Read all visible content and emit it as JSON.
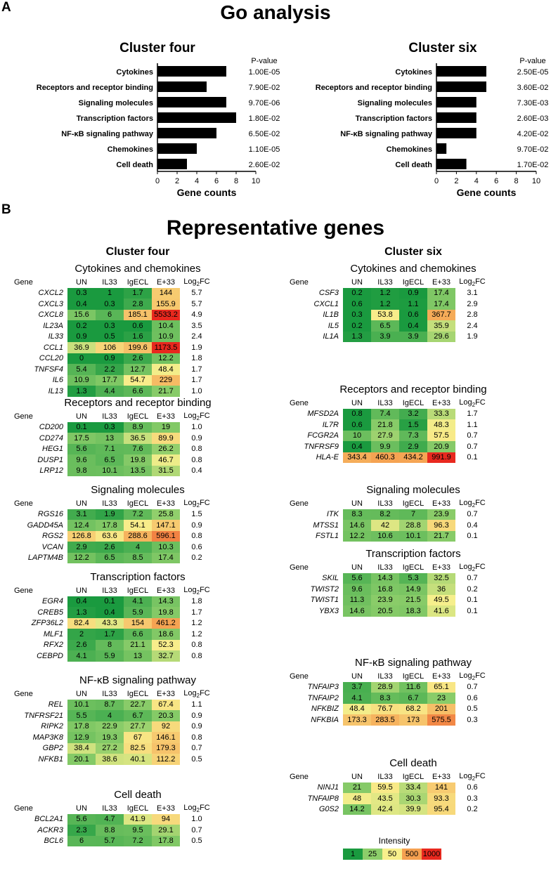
{
  "panel_labels": {
    "a": "A",
    "b": "B"
  },
  "titles": {
    "go": "Go analysis",
    "rep": "Representative genes"
  },
  "chart_data": [
    {
      "type": "bar",
      "orientation": "horizontal",
      "title": "Cluster four",
      "categories": [
        "Cytokines",
        "Receptors and receptor binding",
        "Signaling molecules",
        "Transcription factors",
        "NF-κB signaling pathway",
        "Chemokines",
        "Cell death"
      ],
      "values": [
        7,
        5,
        7,
        8,
        6,
        4,
        3
      ],
      "pvalues": [
        "1.00E-05",
        "7.90E-02",
        "9.70E-06",
        "1.80E-02",
        "6.50E-02",
        "1.10E-05",
        "2.60E-02"
      ],
      "pvalue_header": "P-value",
      "xlabel": "Gene counts",
      "xlim": [
        0,
        10
      ],
      "xticks": [
        "0",
        "2",
        "4",
        "6",
        "8",
        "10"
      ]
    },
    {
      "type": "bar",
      "orientation": "horizontal",
      "title": "Cluster six",
      "categories": [
        "Cytokines",
        "Receptors and receptor binding",
        "Signaling molecules",
        "Transcription factors",
        "NF-κB signaling pathway",
        "Chemokines",
        "Cell death"
      ],
      "values": [
        5,
        5,
        4,
        4,
        4,
        1,
        3
      ],
      "pvalues": [
        "2.50E-05",
        "3.60E-02",
        "7.30E-03",
        "2.60E-03",
        "4.20E-02",
        "9.70E-02",
        "1.70E-02"
      ],
      "pvalue_header": "P-value",
      "xlabel": "Gene counts",
      "xlim": [
        0,
        10
      ],
      "xticks": [
        "0",
        "2",
        "4",
        "6",
        "8",
        "10"
      ]
    },
    {
      "type": "heatmap",
      "title": "Cluster four",
      "columns": [
        "Gene",
        "UN",
        "IL33",
        "IgECL",
        "E+33",
        "Log2FC"
      ],
      "sections": [
        {
          "title": "Cytokines and chemokines",
          "rows": [
            {
              "gene": "CXCL2",
              "vals": [
                "0.3",
                "1",
                "1.7",
                "144"
              ],
              "fc": "5.7"
            },
            {
              "gene": "CXCL3",
              "vals": [
                "0.4",
                "0.3",
                "2.8",
                "155.9"
              ],
              "fc": "5.7"
            },
            {
              "gene": "CXCL8",
              "vals": [
                "15.6",
                "6",
                "185.1",
                "5533.2"
              ],
              "fc": "4.9"
            },
            {
              "gene": "IL23A",
              "vals": [
                "0.2",
                "0.3",
                "0.6",
                "10.4"
              ],
              "fc": "3.5"
            },
            {
              "gene": "IL33",
              "vals": [
                "0.9",
                "0.5",
                "1.6",
                "10.9"
              ],
              "fc": "2.4"
            },
            {
              "gene": "CCL1",
              "vals": [
                "36.9",
                "106",
                "199.6",
                "1173.5"
              ],
              "fc": "1.9"
            },
            {
              "gene": "CCL20",
              "vals": [
                "0",
                "0.9",
                "2.6",
                "12.2"
              ],
              "fc": "1.8"
            },
            {
              "gene": "TNFSF4",
              "vals": [
                "5.4",
                "2.2",
                "12.7",
                "48.4"
              ],
              "fc": "1.7"
            },
            {
              "gene": "IL6",
              "vals": [
                "10.9",
                "17.7",
                "54.7",
                "229"
              ],
              "fc": "1.7"
            },
            {
              "gene": "IL13",
              "vals": [
                "1.3",
                "4.4",
                "6.6",
                "21.7"
              ],
              "fc": "1.0"
            }
          ]
        },
        {
          "title": "Receptors and receptor binding",
          "rows": [
            {
              "gene": "CD200",
              "vals": [
                "0.1",
                "0.3",
                "8.9",
                "19"
              ],
              "fc": "1.0"
            },
            {
              "gene": "CD274",
              "vals": [
                "17.5",
                "13",
                "36.5",
                "89.9"
              ],
              "fc": "0.9"
            },
            {
              "gene": "HEG1",
              "vals": [
                "5.6",
                "7.1",
                "7.6",
                "26.2"
              ],
              "fc": "0.8"
            },
            {
              "gene": "DUSP1",
              "vals": [
                "9.6",
                "6.5",
                "19.8",
                "46.7"
              ],
              "fc": "0.8"
            },
            {
              "gene": "LRP12",
              "vals": [
                "9.8",
                "10.1",
                "13.5",
                "31.5"
              ],
              "fc": "0.4"
            }
          ]
        },
        {
          "title": "Signaling molecules",
          "rows": [
            {
              "gene": "RGS16",
              "vals": [
                "3.1",
                "1.9",
                "7.2",
                "25.8"
              ],
              "fc": "1.5"
            },
            {
              "gene": "GADD45A",
              "vals": [
                "12.4",
                "17.8",
                "54.1",
                "147.1"
              ],
              "fc": "0.9"
            },
            {
              "gene": "RGS2",
              "vals": [
                "126.8",
                "63.6",
                "288.6",
                "596.1"
              ],
              "fc": "0.8"
            },
            {
              "gene": "VCAN",
              "vals": [
                "2.9",
                "2.6",
                "4",
                "10.3"
              ],
              "fc": "0.6"
            },
            {
              "gene": "LAPTM4B",
              "vals": [
                "12.2",
                "6.5",
                "8.5",
                "17.4"
              ],
              "fc": "0.2"
            }
          ]
        },
        {
          "title": "Transcription factors",
          "rows": [
            {
              "gene": "EGR4",
              "vals": [
                "0.4",
                "0.1",
                "4.1",
                "14.3"
              ],
              "fc": "1.8"
            },
            {
              "gene": "CREB5",
              "vals": [
                "1.3",
                "0.4",
                "5.9",
                "19.8"
              ],
              "fc": "1.7"
            },
            {
              "gene": "ZFP36L2",
              "vals": [
                "82.4",
                "43.3",
                "154",
                "461.2"
              ],
              "fc": "1.2"
            },
            {
              "gene": "MLF1",
              "vals": [
                "2",
                "1.7",
                "6.6",
                "18.6"
              ],
              "fc": "1.2"
            },
            {
              "gene": "RFX2",
              "vals": [
                "2.6",
                "8",
                "21.1",
                "52.3"
              ],
              "fc": "0.8"
            },
            {
              "gene": "CEBPD",
              "vals": [
                "4.1",
                "5.9",
                "13",
                "32.7"
              ],
              "fc": "0.8"
            }
          ]
        },
        {
          "title": "NF-κB signaling pathway",
          "rows": [
            {
              "gene": "REL",
              "vals": [
                "10.1",
                "8.7",
                "22.7",
                "67.4"
              ],
              "fc": "1.1"
            },
            {
              "gene": "TNFRSF21",
              "vals": [
                "5.5",
                "4",
                "6.7",
                "20.3"
              ],
              "fc": "0.9"
            },
            {
              "gene": "RIPK2",
              "vals": [
                "17.8",
                "22.9",
                "27.7",
                "92"
              ],
              "fc": "0.9"
            },
            {
              "gene": "MAP3K8",
              "vals": [
                "12.9",
                "19.3",
                "67",
                "146.1"
              ],
              "fc": "0.8"
            },
            {
              "gene": "GBP2",
              "vals": [
                "38.4",
                "27.2",
                "82.5",
                "179.3"
              ],
              "fc": "0.7"
            },
            {
              "gene": "NFKB1",
              "vals": [
                "20.1",
                "38.6",
                "40.1",
                "112.2"
              ],
              "fc": "0.5"
            }
          ]
        },
        {
          "title": "Cell death",
          "rows": [
            {
              "gene": "BCL2A1",
              "vals": [
                "5.6",
                "4.7",
                "41.9",
                "94"
              ],
              "fc": "1.0"
            },
            {
              "gene": "ACKR3",
              "vals": [
                "2.3",
                "8.8",
                "9.5",
                "29.1"
              ],
              "fc": "0.7"
            },
            {
              "gene": "BCL6",
              "vals": [
                "6",
                "5.7",
                "7.2",
                "17.8"
              ],
              "fc": "0.5"
            }
          ]
        }
      ]
    },
    {
      "type": "heatmap",
      "title": "Cluster six",
      "columns": [
        "Gene",
        "UN",
        "IL33",
        "IgECL",
        "E+33",
        "Log2FC"
      ],
      "sections": [
        {
          "title": "Cytokines and chemokines",
          "rows": [
            {
              "gene": "CSF3",
              "vals": [
                "0.2",
                "1.2",
                "0.9",
                "17.4"
              ],
              "fc": "3.1"
            },
            {
              "gene": "CXCL1",
              "vals": [
                "0.6",
                "1.2",
                "1.1",
                "17.4"
              ],
              "fc": "2.9"
            },
            {
              "gene": "IL1B",
              "vals": [
                "0.3",
                "53.8",
                "0.6",
                "367.7"
              ],
              "fc": "2.8"
            },
            {
              "gene": "IL5",
              "vals": [
                "0.2",
                "6.5",
                "0.4",
                "35.9"
              ],
              "fc": "2.4"
            },
            {
              "gene": "IL1A",
              "vals": [
                "1.3",
                "3.9",
                "3.9",
                "29.6"
              ],
              "fc": "1.9"
            }
          ]
        },
        {
          "title": "Receptors and receptor binding",
          "rows": [
            {
              "gene": "MFSD2A",
              "vals": [
                "0.8",
                "7.4",
                "3.2",
                "33.3"
              ],
              "fc": "1.7"
            },
            {
              "gene": "IL7R",
              "vals": [
                "0.6",
                "21.8",
                "1.5",
                "48.3"
              ],
              "fc": "1.1"
            },
            {
              "gene": "FCGR2A",
              "vals": [
                "10",
                "27.9",
                "7.3",
                "57.5"
              ],
              "fc": "0.7"
            },
            {
              "gene": "TNFRSF9",
              "vals": [
                "0.4",
                "9.9",
                "2.9",
                "20.9"
              ],
              "fc": "0.7"
            },
            {
              "gene": "HLA-E",
              "vals": [
                "343.4",
                "460.3",
                "434.2",
                "991.9"
              ],
              "fc": "0.1"
            }
          ]
        },
        {
          "title": "Signaling molecules",
          "rows": [
            {
              "gene": "ITK",
              "vals": [
                "8.3",
                "8.2",
                "7",
                "23.9"
              ],
              "fc": "0.7"
            },
            {
              "gene": "MTSS1",
              "vals": [
                "14.6",
                "42",
                "28.8",
                "96.3"
              ],
              "fc": "0.4"
            },
            {
              "gene": "FSTL1",
              "vals": [
                "12.2",
                "10.6",
                "10.1",
                "21.7"
              ],
              "fc": "0.1"
            }
          ]
        },
        {
          "title": "Transcription factors",
          "rows": [
            {
              "gene": "SKIL",
              "vals": [
                "5.6",
                "14.3",
                "5.3",
                "32.5"
              ],
              "fc": "0.7"
            },
            {
              "gene": "TWIST2",
              "vals": [
                "9.6",
                "16.8",
                "14.9",
                "36"
              ],
              "fc": "0.2"
            },
            {
              "gene": "TWIST1",
              "vals": [
                "11.3",
                "23.9",
                "21.5",
                "49.5"
              ],
              "fc": "0.1"
            },
            {
              "gene": "YBX3",
              "vals": [
                "14.6",
                "20.5",
                "18.3",
                "41.6"
              ],
              "fc": "0.1"
            }
          ]
        },
        {
          "title": "NF-κB signaling pathway",
          "rows": [
            {
              "gene": "TNFAIP3",
              "vals": [
                "3.7",
                "28.9",
                "11.6",
                "65.1"
              ],
              "fc": "0.7"
            },
            {
              "gene": "TNFAIP2",
              "vals": [
                "4.1",
                "8.3",
                "6.7",
                "23"
              ],
              "fc": "0.6"
            },
            {
              "gene": "NFKBIZ",
              "vals": [
                "48.4",
                "76.7",
                "68.2",
                "201"
              ],
              "fc": "0.5"
            },
            {
              "gene": "NFKBIA",
              "vals": [
                "173.3",
                "283.5",
                "173",
                "575.5"
              ],
              "fc": "0.3"
            }
          ]
        },
        {
          "title": "Cell death",
          "rows": [
            {
              "gene": "NINJ1",
              "vals": [
                "21",
                "59.5",
                "33.4",
                "141"
              ],
              "fc": "0.6"
            },
            {
              "gene": "TNFAIP8",
              "vals": [
                "48",
                "43.5",
                "30.3",
                "93.3"
              ],
              "fc": "0.3"
            },
            {
              "gene": "G0S2",
              "vals": [
                "14.2",
                "42.4",
                "39.9",
                "95.4"
              ],
              "fc": "0.2"
            }
          ]
        }
      ]
    }
  ],
  "legend": {
    "title": "Intensity",
    "stops": [
      "1",
      "25",
      "50",
      "500",
      "1000"
    ],
    "colors": [
      "#1a9a3f",
      "#8ccd6a",
      "#f8ef8c",
      "#f5a050",
      "#e8281e"
    ]
  }
}
